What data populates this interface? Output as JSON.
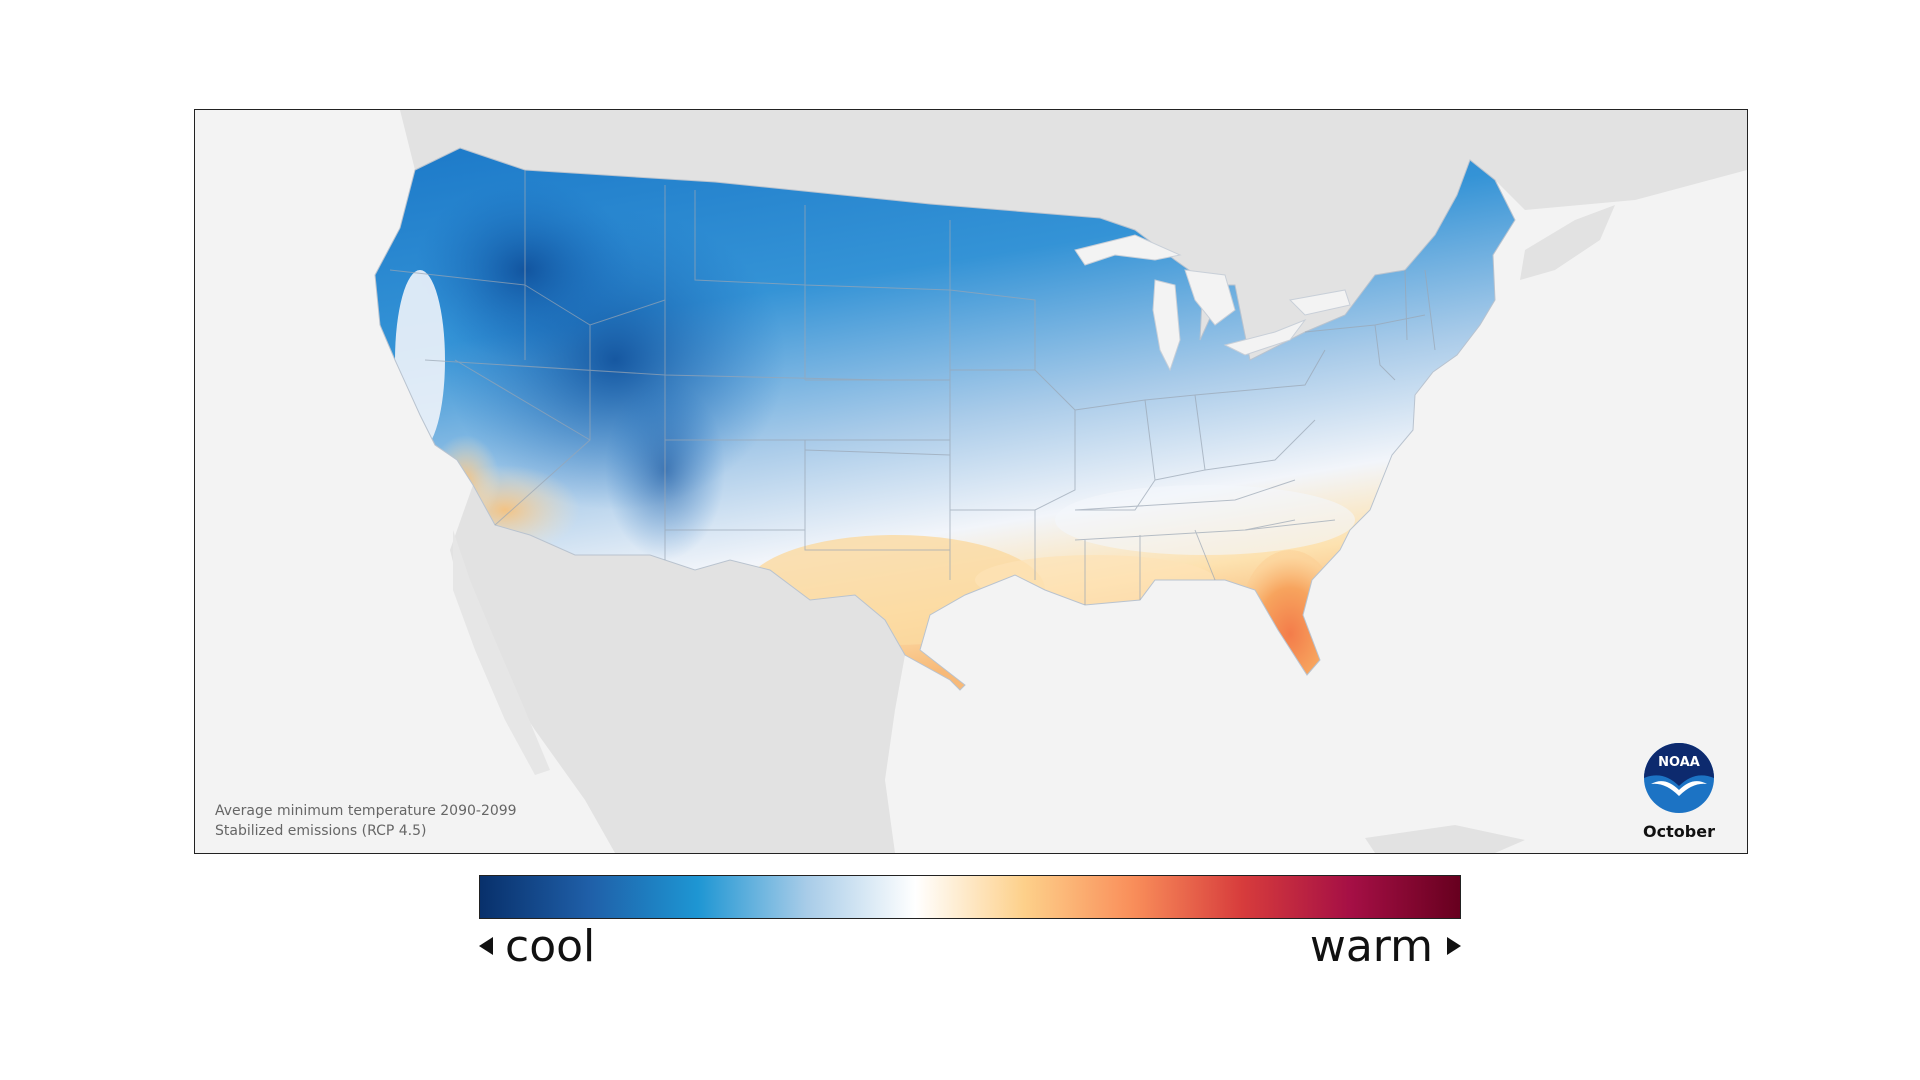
{
  "map": {
    "caption_line1": "Average minimum temperature 2090-2099",
    "caption_line2": "Stabilized emissions (RCP 4.5)",
    "month": "October",
    "logo_text": "NOAA",
    "region": "contiguous-united-states",
    "colors": {
      "background": "#f3f3f3",
      "surrounding_land": "#e2e2e2",
      "state_lines": "#9aa6b4"
    }
  },
  "legend": {
    "cool_label": "cool",
    "warm_label": "warm",
    "ramp": [
      "#08306b",
      "#1f5fa8",
      "#1e96d3",
      "#a8cce8",
      "#ffffff",
      "#fdd08a",
      "#f98e5a",
      "#d73c3c",
      "#a50f45",
      "#67001f"
    ]
  }
}
